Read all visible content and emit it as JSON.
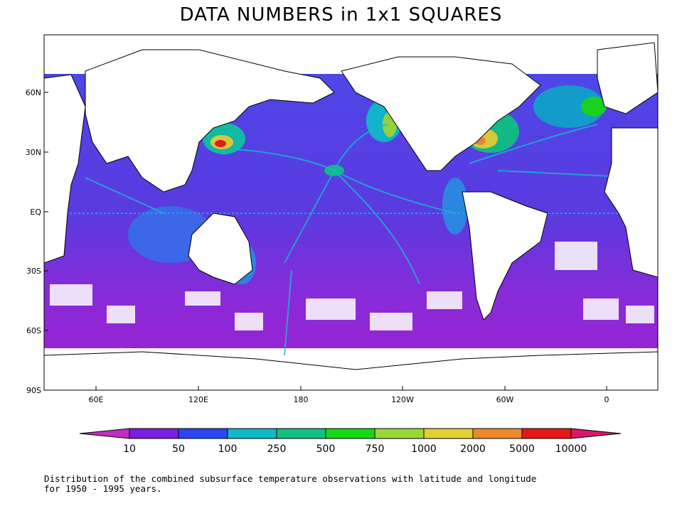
{
  "title": "DATA NUMBERS in 1x1 SQUARES",
  "axes": {
    "y_ticks": [
      "60N",
      "30N",
      "EQ",
      "30S",
      "60S",
      "90S"
    ],
    "x_ticks": [
      "60E",
      "120E",
      "180",
      "120W",
      "60W",
      "0"
    ]
  },
  "colorbar": {
    "labels": [
      "10",
      "50",
      "100",
      "250",
      "500",
      "750",
      "1000",
      "2000",
      "5000",
      "10000"
    ],
    "colors": [
      "#c02ec0",
      "#7a1ee0",
      "#2a46f0",
      "#10b8c8",
      "#10c080",
      "#18d818",
      "#98d838",
      "#e0d030",
      "#ec8a2c",
      "#e81818",
      "#d81868"
    ]
  },
  "caption": {
    "line1": "Distribution of the combined subsurface temperature observations with latitude and longitude",
    "line2": "for 1950 - 1995 years."
  },
  "colors": {
    "land": "#ffffff",
    "ocean_low": "#8a2ad8",
    "ocean_mid": "#4050e8",
    "coast": "#000000"
  }
}
